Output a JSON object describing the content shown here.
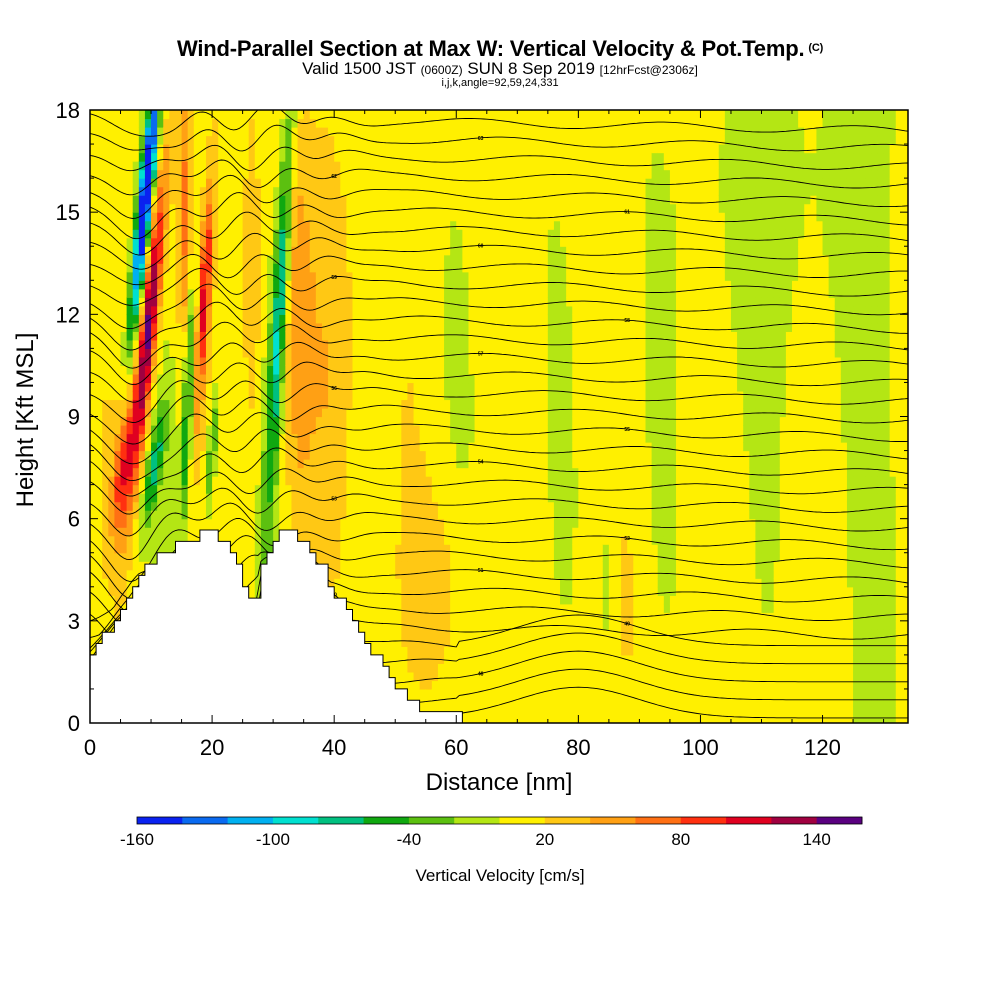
{
  "chart_data": {
    "type": "heatmap",
    "title": "Wind-Parallel Section at Max W: Vertical Velocity & Pot.Temp.",
    "title_mark": "(C)",
    "subtitle": "Valid 1500 JST",
    "subtitle_zulu": "(0600Z)",
    "subtitle_date": "SUN 8 Sep 2019",
    "subtitle_fcst": "[12hrFcst@2306z]",
    "subtitle2": "i,j,k,angle=92,59,24,331",
    "xlabel": "Distance [nm]",
    "ylabel": "Height [Kft MSL]",
    "xlim": [
      0,
      134
    ],
    "ylim": [
      0,
      18
    ],
    "xticks": [
      0,
      20,
      40,
      60,
      80,
      100,
      120
    ],
    "yticks": [
      0,
      3,
      6,
      9,
      12,
      15,
      18
    ],
    "colorbar": {
      "label": "Vertical Velocity [cm/s]",
      "ticks": [
        "-160",
        "-100",
        "-40",
        "20",
        "80",
        "140"
      ],
      "bins": [
        -160,
        -140,
        -120,
        -100,
        -80,
        -60,
        -40,
        -20,
        0,
        20,
        40,
        60,
        80,
        100,
        120,
        140,
        160
      ],
      "colors": [
        "#0a22f0",
        "#0a6af0",
        "#00b0f0",
        "#00e0d0",
        "#00c080",
        "#10a810",
        "#5cc010",
        "#b4e614",
        "#fff000",
        "#ffc814",
        "#ffa014",
        "#ff7014",
        "#ff3010",
        "#e00020",
        "#a00040",
        "#5a0080"
      ]
    },
    "terrain_kft": [
      [
        0,
        2.1
      ],
      [
        3,
        2.8
      ],
      [
        6,
        3.6
      ],
      [
        8,
        4.3
      ],
      [
        11,
        5.0
      ],
      [
        14,
        5.2
      ],
      [
        16,
        5.3
      ],
      [
        19,
        5.7
      ],
      [
        22,
        5.3
      ],
      [
        24,
        4.5
      ],
      [
        26,
        3.5
      ],
      [
        27,
        3.5
      ],
      [
        28,
        4.8
      ],
      [
        30,
        5.3
      ],
      [
        31,
        5.5
      ],
      [
        33,
        5.5
      ],
      [
        35,
        5.3
      ],
      [
        38,
        4.5
      ],
      [
        40,
        3.8
      ],
      [
        42,
        3.3
      ],
      [
        44,
        2.6
      ],
      [
        46,
        2.1
      ],
      [
        49,
        1.3
      ],
      [
        52,
        0.7
      ],
      [
        54,
        0.4
      ],
      [
        56,
        0.4
      ],
      [
        58,
        0.4
      ]
    ],
    "contour_labels": [
      "45",
      "46",
      "47",
      "48",
      "49",
      "50",
      "51",
      "52",
      "53",
      "54",
      "55",
      "56",
      "57",
      "58",
      "59",
      "60",
      "61",
      "62",
      "63",
      "64",
      "65",
      "66"
    ],
    "grid": false,
    "legend": "colorbar-bottom"
  }
}
